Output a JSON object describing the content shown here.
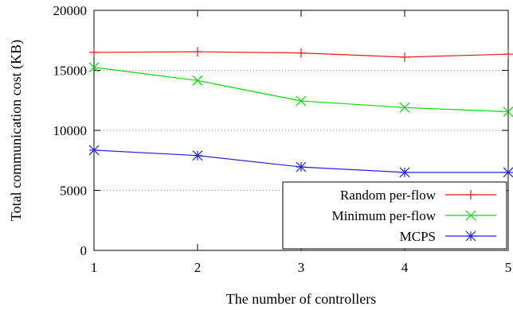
{
  "chart_data": {
    "type": "line",
    "xlabel": "The number of controllers",
    "ylabel": "Total communication cost (KB)",
    "x": [
      1,
      2,
      3,
      4,
      5
    ],
    "xlim": [
      1,
      5
    ],
    "ylim": [
      0,
      20000
    ],
    "xticks": [
      "1",
      "2",
      "3",
      "4",
      "5"
    ],
    "yticks": [
      "0",
      "5000",
      "10000",
      "15000",
      "20000"
    ],
    "grid": "horizontal dotted",
    "legend_position": "bottom-right",
    "series": [
      {
        "name": "Random per-flow",
        "color": "#e41a1c",
        "marker": "plus",
        "values": [
          16500,
          16550,
          16450,
          16100,
          16350
        ]
      },
      {
        "name": "Minimum per-flow",
        "color": "#00dd00",
        "marker": "cross",
        "values": [
          15250,
          14150,
          12450,
          11900,
          11550
        ]
      },
      {
        "name": "MCPS",
        "color": "#2222dd",
        "marker": "star",
        "values": [
          8350,
          7900,
          6950,
          6500,
          6500
        ]
      }
    ]
  }
}
